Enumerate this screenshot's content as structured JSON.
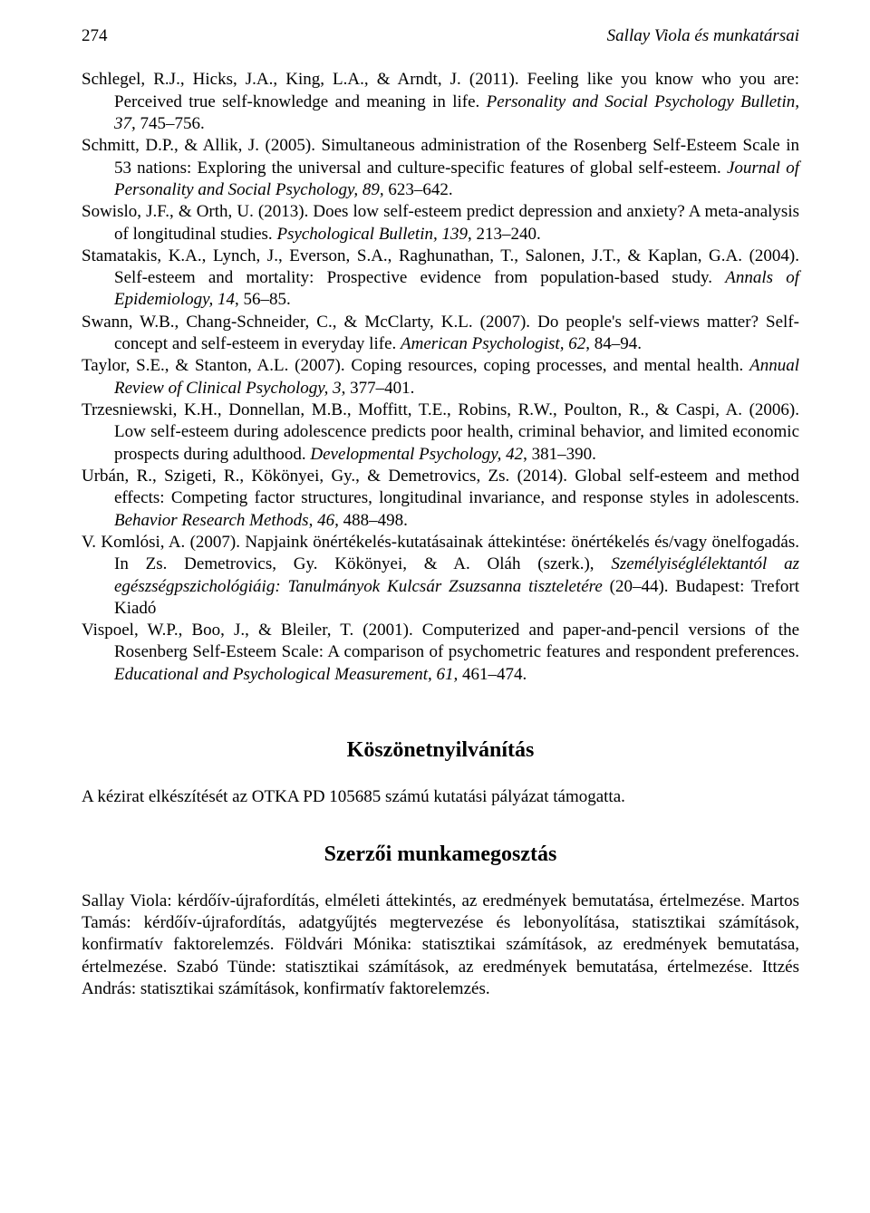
{
  "header": {
    "page_number": "274",
    "running_title": "Sallay Viola és munkatársai"
  },
  "references": [
    {
      "plain1": "Schlegel, R.J., Hicks, J.A., King, L.A., & Arndt, J. (2011). Feeling like you know who you are: Perceived true self-knowledge and meaning in life. ",
      "ital1": "Personality and Social Psychology Bulletin, 37,",
      "plain2": " 745–756."
    },
    {
      "plain1": "Schmitt, D.P., & Allik, J. (2005). Simultaneous administration of the Rosenberg Self-Esteem Scale in 53 nations: Exploring the universal and culture-specific features of global self-esteem. ",
      "ital1": "Journal of Personality and Social Psychology, 89,",
      "plain2": " 623–642."
    },
    {
      "plain1": "Sowislo, J.F., & Orth, U. (2013). Does low self-esteem predict depression and anxiety? A meta-analysis of longitudinal studies. ",
      "ital1": "Psychological Bulletin, 139",
      "plain2": ", 213–240."
    },
    {
      "plain1": "Stamatakis, K.A., Lynch, J., Everson, S.A., Raghunathan, T., Salonen, J.T., & Kaplan, G.A. (2004). Self-esteem and mortality: Prospective evidence from population-based study. ",
      "ital1": "Annals of Epidemiology, 14",
      "plain2": ", 56–85."
    },
    {
      "plain1": "Swann, W.B., Chang-Schneider, C., & McClarty, K.L. (2007). Do people's self-views matter? Self-concept and self-esteem in everyday life. ",
      "ital1": "American Psychologist, 62",
      "plain2": ", 84–94."
    },
    {
      "plain1": "Taylor, S.E., & Stanton, A.L. (2007). Coping resources, coping processes, and mental health. ",
      "ital1": "Annual Review of Clinical Psychology, 3",
      "plain2": ", 377–401."
    },
    {
      "plain1": "Trzesniewski, K.H., Donnellan, M.B., Moffitt, T.E., Robins, R.W., Poulton, R., & Caspi, A. (2006). Low self-esteem during adolescence predicts poor health, criminal behavior, and limited economic prospects during adulthood. ",
      "ital1": "Developmental Psychology, 42",
      "plain2": ", 381–390."
    },
    {
      "plain1": "Urbán, R., Szigeti, R., Kökönyei, Gy., & Demetrovics, Zs. (2014). Global self-esteem and method effects: Competing factor structures, longitudinal invariance, and response styles in adolescents. ",
      "ital1": "Behavior Research Methods",
      "plain2": ", ",
      "ital2": "46,",
      "plain3": " 488–498."
    },
    {
      "plain1": "V. Komlósi, A. (2007). Napjaink önértékelés-kutatásainak áttekintése: önértékelés és/vagy önelfogadás. In Zs. Demetrovics, Gy. Kökönyei, & A. Oláh (szerk.), ",
      "ital1": "Személyiséglélektantól az egészségpszichológiáig: Tanulmányok Kulcsár Zsuzsanna tiszteletére",
      "plain2": " (20–44). Budapest: Trefort Kiadó"
    },
    {
      "plain1": "Vispoel, W.P., Boo, J., & Bleiler, T. (2001). Computerized and paper-and-pencil versions of the Rosenberg Self-Esteem Scale: A comparison of psychometric features and respondent preferences. ",
      "ital1": "Educational and Psychological Measurement, 61,",
      "plain2": " 461–474."
    }
  ],
  "sections": {
    "ack_title": "Köszönetnyilvánítás",
    "ack_body": "A kézirat elkészítését az OTKA PD 105685 számú kutatási pályázat támogatta.",
    "contrib_title": "Szerzői munkamegosztás",
    "contrib_body": "Sallay Viola: kérdőív-újrafordítás, elméleti áttekintés, az eredmények bemutatása, értelmezése. Martos Tamás: kérdőív-újrafordítás, adatgyűjtés megtervezése és lebonyolítása, statisztikai számítások, konfirmatív faktorelemzés. Földvári Mónika: statisztikai számítások, az eredmények bemutatása, értelmezése. Szabó Tünde: statisztikai számítások, az eredmények bemutatása, értelmezése. Ittzés András: statisztikai számítások, konfirmatív faktorelemzés."
  }
}
